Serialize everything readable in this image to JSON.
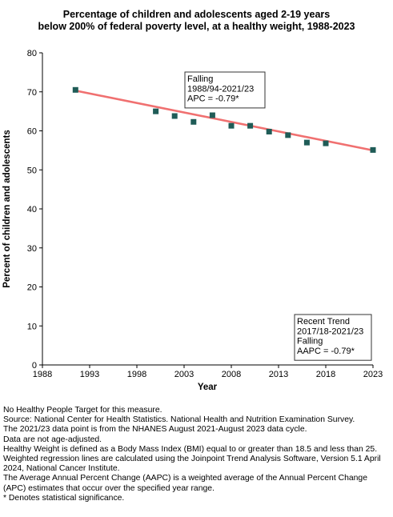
{
  "chart_data": {
    "type": "scatter",
    "title": [
      "Percentage of children and adolescents aged 2-19 years",
      "below 200% of federal poverty level, at a healthy weight, 1988-2023"
    ],
    "xlabel": "Year",
    "ylabel": "Percent of children and adolescents",
    "xlim": [
      1988,
      2023
    ],
    "ylim": [
      0,
      80
    ],
    "x_ticks": [
      "1988",
      "1993",
      "1998",
      "2003",
      "2008",
      "2013",
      "2018",
      "2023"
    ],
    "y_ticks": [
      "0",
      "10",
      "20",
      "30",
      "40",
      "50",
      "60",
      "70",
      "80"
    ],
    "grid": false,
    "points": [
      {
        "x": 1991.5,
        "y": 70.5
      },
      {
        "x": 2000.0,
        "y": 65.0
      },
      {
        "x": 2002.0,
        "y": 63.8
      },
      {
        "x": 2004.0,
        "y": 62.3
      },
      {
        "x": 2006.0,
        "y": 64.0
      },
      {
        "x": 2008.0,
        "y": 61.3
      },
      {
        "x": 2010.0,
        "y": 61.3
      },
      {
        "x": 2012.0,
        "y": 59.8
      },
      {
        "x": 2014.0,
        "y": 58.9
      },
      {
        "x": 2016.0,
        "y": 57.0
      },
      {
        "x": 2018.0,
        "y": 56.8
      },
      {
        "x": 2023.0,
        "y": 55.1
      }
    ],
    "trend_line": {
      "x": [
        1991.5,
        2023.0
      ],
      "y": [
        70.3,
        55.0
      ]
    },
    "annotations": [
      {
        "lines": [
          "Falling",
          "1988/94-2021/23",
          "APC = -0.79*"
        ]
      },
      {
        "lines": [
          "Recent Trend",
          "2017/18-2021/23",
          "Falling",
          "AAPC = -0.79*"
        ]
      }
    ],
    "colors": {
      "points": "#1f5c57",
      "trend": "#f07070",
      "axis": "#000000"
    }
  },
  "footnotes": [
    "No Healthy People Target for this measure.",
    "Source: National Center for Health Statistics. National Health and Nutrition Examination Survey.",
    "The 2021/23 data point is from the NHANES August 2021-August 2023 data cycle.",
    "Data are not age-adjusted.",
    "Healthy Weight is defined as a Body Mass Index (BMI) equal to or greater than 18.5 and less than 25.",
    "Weighted regression lines are calculated using the Joinpoint Trend Analysis Software, Version 5.1 April 2024, National Cancer Institute.",
    "The Average Annual Percent Change (AAPC) is a weighted average of the Annual Percent Change (APC) estimates that occur over the specified year range.",
    "* Denotes statistical significance."
  ]
}
